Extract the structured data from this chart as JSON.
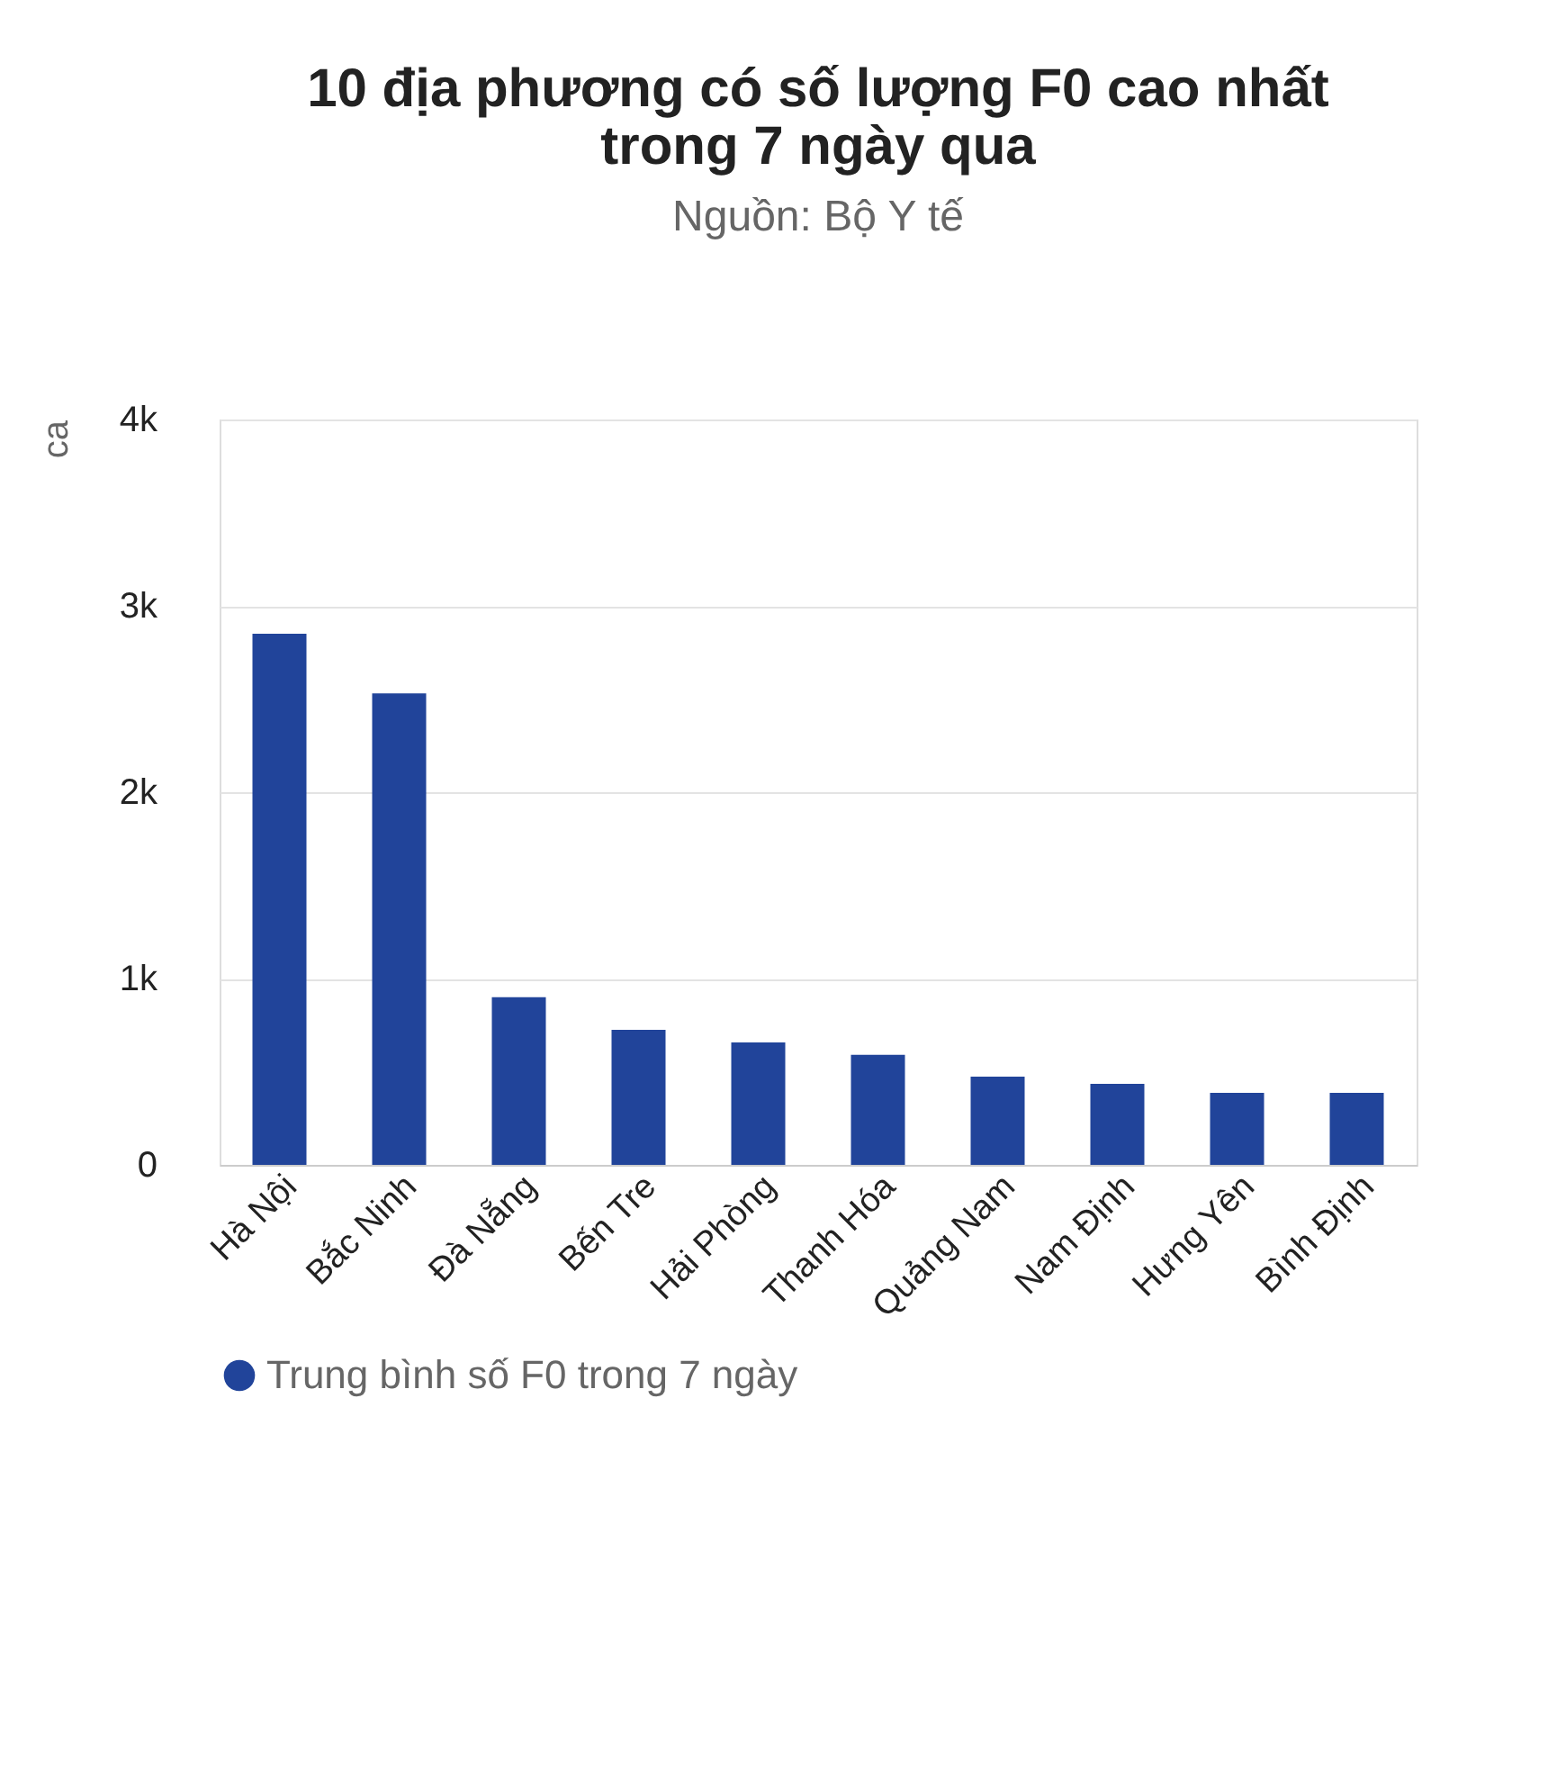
{
  "chart_data": {
    "type": "bar",
    "title": "10 địa phương có số lượng F0 cao nhất trong 7 ngày qua",
    "subtitle": "Nguồn: Bộ Y tế",
    "ylabel": "ca",
    "categories": [
      "Hà Nội",
      "Bắc Ninh",
      "Đà Nẵng",
      "Bến Tre",
      "Hải Phòng",
      "Thanh Hóa",
      "Quảng Nam",
      "Nam Định",
      "Hưng Yên",
      "Bình Định"
    ],
    "series": [
      {
        "name": "Trung bình số F0 trong 7 ngày",
        "color": "#21449a",
        "values": [
          2850,
          2530,
          900,
          725,
          657,
          590,
          473,
          435,
          386,
          386
        ]
      }
    ],
    "ylim": [
      0,
      4000
    ],
    "yticks": [
      0,
      {
        "value": 1000,
        "label": "1k"
      },
      {
        "value": 2000,
        "label": "2k"
      },
      {
        "value": 3000,
        "label": "3k"
      },
      {
        "value": 4000,
        "label": "4k"
      }
    ],
    "grid": "y",
    "legend": "bottom"
  }
}
